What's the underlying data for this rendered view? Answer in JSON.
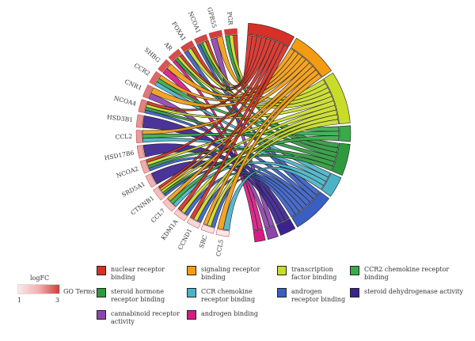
{
  "chart_data": {
    "type": "chord",
    "genes": [
      {
        "name": "PGR",
        "logFC": 3.0
      },
      {
        "name": "GPR55",
        "logFC": 3.0
      },
      {
        "name": "NCOA1",
        "logFC": 2.9
      },
      {
        "name": "FOXA1",
        "logFC": 2.9
      },
      {
        "name": "AR",
        "logFC": 2.8
      },
      {
        "name": "SHBG",
        "logFC": 2.7
      },
      {
        "name": "CCR2",
        "logFC": 2.5
      },
      {
        "name": "CNR1",
        "logFC": 2.3
      },
      {
        "name": "NCOA4",
        "logFC": 2.2
      },
      {
        "name": "HSD3B1",
        "logFC": 2.0
      },
      {
        "name": "CCL2",
        "logFC": 1.9
      },
      {
        "name": "HSD17B6",
        "logFC": 1.8
      },
      {
        "name": "NCOA2",
        "logFC": 1.7
      },
      {
        "name": "SRD5A1",
        "logFC": 1.6
      },
      {
        "name": "CTNNB1",
        "logFC": 1.5
      },
      {
        "name": "CCL7",
        "logFC": 1.4
      },
      {
        "name": "KDM1A",
        "logFC": 1.3
      },
      {
        "name": "CCND1",
        "logFC": 1.2
      },
      {
        "name": "SRC",
        "logFC": 1.1
      },
      {
        "name": "CCL5",
        "logFC": 1.0
      }
    ],
    "terms": [
      {
        "name": "nuclear receptor binding",
        "color": "#d73027"
      },
      {
        "name": "signaling receptor binding",
        "color": "#f39c12"
      },
      {
        "name": "transcription factor binding",
        "color": "#c9dc2a"
      },
      {
        "name": "CCR2 chemokine receptor binding",
        "color": "#3aaa4a"
      },
      {
        "name": "steroid hormone receptor binding",
        "color": "#2d9a3e"
      },
      {
        "name": "CCR chemokine receptor binding",
        "color": "#4bb3c8"
      },
      {
        "name": "androgen receptor binding",
        "color": "#3a5fc4"
      },
      {
        "name": "steroid dehydrogenase activity",
        "color": "#3b238f"
      },
      {
        "name": "cannabinoid receptor activity",
        "color": "#8e44ad"
      },
      {
        "name": "androgen binding",
        "color": "#d81b84"
      }
    ],
    "links": [
      {
        "gene": "PGR",
        "term": "nuclear receptor binding"
      },
      {
        "gene": "PGR",
        "term": "transcription factor binding"
      },
      {
        "gene": "PGR",
        "term": "steroid hormone receptor binding"
      },
      {
        "gene": "GPR55",
        "term": "signaling receptor binding"
      },
      {
        "gene": "GPR55",
        "term": "cannabinoid receptor activity"
      },
      {
        "gene": "NCOA1",
        "term": "nuclear receptor binding"
      },
      {
        "gene": "NCOA1",
        "term": "transcription factor binding"
      },
      {
        "gene": "NCOA1",
        "term": "steroid hormone receptor binding"
      },
      {
        "gene": "NCOA1",
        "term": "androgen receptor binding"
      },
      {
        "gene": "FOXA1",
        "term": "nuclear receptor binding"
      },
      {
        "gene": "FOXA1",
        "term": "transcription factor binding"
      },
      {
        "gene": "FOXA1",
        "term": "androgen receptor binding"
      },
      {
        "gene": "AR",
        "term": "nuclear receptor binding"
      },
      {
        "gene": "AR",
        "term": "transcription factor binding"
      },
      {
        "gene": "AR",
        "term": "steroid hormone receptor binding"
      },
      {
        "gene": "AR",
        "term": "androgen binding"
      },
      {
        "gene": "SHBG",
        "term": "signaling receptor binding"
      },
      {
        "gene": "SHBG",
        "term": "androgen binding"
      },
      {
        "gene": "CCR2",
        "term": "signaling receptor binding"
      },
      {
        "gene": "CCR2",
        "term": "CCR2 chemokine receptor binding"
      },
      {
        "gene": "CCR2",
        "term": "CCR chemokine receptor binding"
      },
      {
        "gene": "CNR1",
        "term": "signaling receptor binding"
      },
      {
        "gene": "CNR1",
        "term": "cannabinoid receptor activity"
      },
      {
        "gene": "NCOA4",
        "term": "nuclear receptor binding"
      },
      {
        "gene": "NCOA4",
        "term": "transcription factor binding"
      },
      {
        "gene": "NCOA4",
        "term": "steroid hormone receptor binding"
      },
      {
        "gene": "NCOA4",
        "term": "androgen receptor binding"
      },
      {
        "gene": "HSD3B1",
        "term": "steroid dehydrogenase activity"
      },
      {
        "gene": "CCL2",
        "term": "signaling receptor binding"
      },
      {
        "gene": "CCL2",
        "term": "CCR2 chemokine receptor binding"
      },
      {
        "gene": "CCL2",
        "term": "CCR chemokine receptor binding"
      },
      {
        "gene": "HSD17B6",
        "term": "steroid dehydrogenase activity"
      },
      {
        "gene": "NCOA2",
        "term": "nuclear receptor binding"
      },
      {
        "gene": "NCOA2",
        "term": "transcription factor binding"
      },
      {
        "gene": "NCOA2",
        "term": "steroid hormone receptor binding"
      },
      {
        "gene": "NCOA2",
        "term": "androgen receptor binding"
      },
      {
        "gene": "SRD5A1",
        "term": "steroid dehydrogenase activity"
      },
      {
        "gene": "CTNNB1",
        "term": "nuclear receptor binding"
      },
      {
        "gene": "CTNNB1",
        "term": "signaling receptor binding"
      },
      {
        "gene": "CTNNB1",
        "term": "transcription factor binding"
      },
      {
        "gene": "CTNNB1",
        "term": "steroid hormone receptor binding"
      },
      {
        "gene": "CTNNB1",
        "term": "androgen receptor binding"
      },
      {
        "gene": "CCL7",
        "term": "signaling receptor binding"
      },
      {
        "gene": "CCL7",
        "term": "CCR2 chemokine receptor binding"
      },
      {
        "gene": "CCL7",
        "term": "CCR chemokine receptor binding"
      },
      {
        "gene": "KDM1A",
        "term": "nuclear receptor binding"
      },
      {
        "gene": "KDM1A",
        "term": "transcription factor binding"
      },
      {
        "gene": "KDM1A",
        "term": "androgen receptor binding"
      },
      {
        "gene": "CCND1",
        "term": "nuclear receptor binding"
      },
      {
        "gene": "CCND1",
        "term": "transcription factor binding"
      },
      {
        "gene": "CCND1",
        "term": "androgen receptor binding"
      },
      {
        "gene": "SRC",
        "term": "signaling receptor binding"
      },
      {
        "gene": "SRC",
        "term": "transcription factor binding"
      },
      {
        "gene": "SRC",
        "term": "androgen receptor binding"
      },
      {
        "gene": "CCL5",
        "term": "signaling receptor binding"
      },
      {
        "gene": "CCL5",
        "term": "CCR chemokine receptor binding"
      }
    ]
  },
  "legend": {
    "logfc_title": "logFC",
    "logfc_min": "1",
    "logfc_max": "3",
    "goterms_label": "GO Terms",
    "items": [
      {
        "label": "nuclear receptor binding",
        "color": "#d73027"
      },
      {
        "label": "signaling receptor binding",
        "color": "#f39c12"
      },
      {
        "label": "transcription factor binding",
        "color": "#c9dc2a"
      },
      {
        "label": "CCR2 chemokine receptor binding",
        "color": "#3aaa4a"
      },
      {
        "label": "steroid hormone receptor binding",
        "color": "#2d9a3e"
      },
      {
        "label": "CCR chemokine receptor binding",
        "color": "#4bb3c8"
      },
      {
        "label": "androgen receptor binding",
        "color": "#3a5fc4"
      },
      {
        "label": "steroid dehydrogenase activity",
        "color": "#3b238f"
      },
      {
        "label": "cannabinoid receptor activity",
        "color": "#8e44ad"
      },
      {
        "label": "androgen binding",
        "color": "#d81b84"
      }
    ]
  }
}
